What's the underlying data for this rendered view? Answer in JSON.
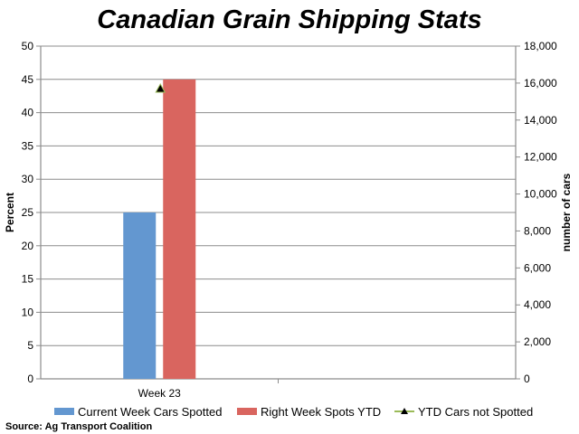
{
  "chart_data": {
    "type": "bar",
    "title": "Canadian Grain Shipping Stats",
    "categories": [
      "Week 23"
    ],
    "ylabel": "Percent",
    "ylabel_right": "number of cars",
    "ylim": [
      0,
      50
    ],
    "ylim_right": [
      0,
      18000
    ],
    "yticks": [
      "0",
      "5",
      "10",
      "15",
      "20",
      "25",
      "30",
      "35",
      "40",
      "45",
      "50"
    ],
    "yticks_right": [
      "0",
      "2,000",
      "4,000",
      "6,000",
      "8,000",
      "10,000",
      "12,000",
      "14,000",
      "16,000",
      "18,000"
    ],
    "grid": true,
    "legend_position": "bottom",
    "series": [
      {
        "name": "Current Week Cars Spotted",
        "type": "bar",
        "axis": "left",
        "values": [
          25
        ],
        "color": "#6397d0"
      },
      {
        "name": "Right Week Spots YTD",
        "type": "bar",
        "axis": "left",
        "values": [
          45
        ],
        "color": "#d9655f"
      },
      {
        "name": "YTD Cars not Spotted",
        "type": "line",
        "axis": "right",
        "values": [
          15700
        ],
        "color": "#9bbb59",
        "marker": "triangle",
        "marker_color": "#000000"
      }
    ],
    "source": "Source: Ag Transport Coalition"
  }
}
